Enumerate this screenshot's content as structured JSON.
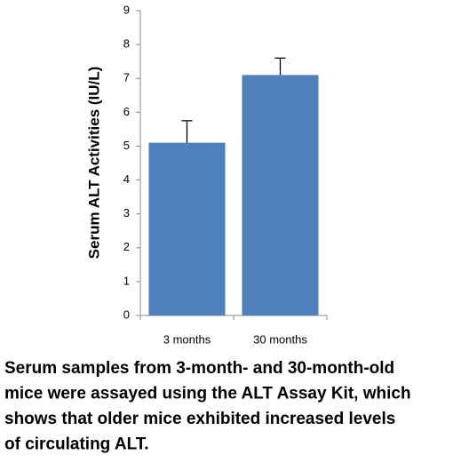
{
  "chart_data": {
    "type": "bar",
    "y_label": "Serum ALT Activities (IU/L)",
    "categories": [
      "3 months",
      "30 months"
    ],
    "values": [
      5.1,
      7.1
    ],
    "errors": [
      0.65,
      0.5
    ],
    "color": "#4f81bd",
    "ylim": [
      0,
      9
    ],
    "yticks": [
      0,
      1,
      2,
      3,
      4,
      5,
      6,
      7,
      8,
      9
    ],
    "grid": false,
    "caption": [
      "Serum samples from 3-month- and 30-month-old",
      "mice were assayed using the ALT Assay Kit, which",
      "shows that older mice exhibited increased levels",
      "of circulating ALT."
    ]
  }
}
